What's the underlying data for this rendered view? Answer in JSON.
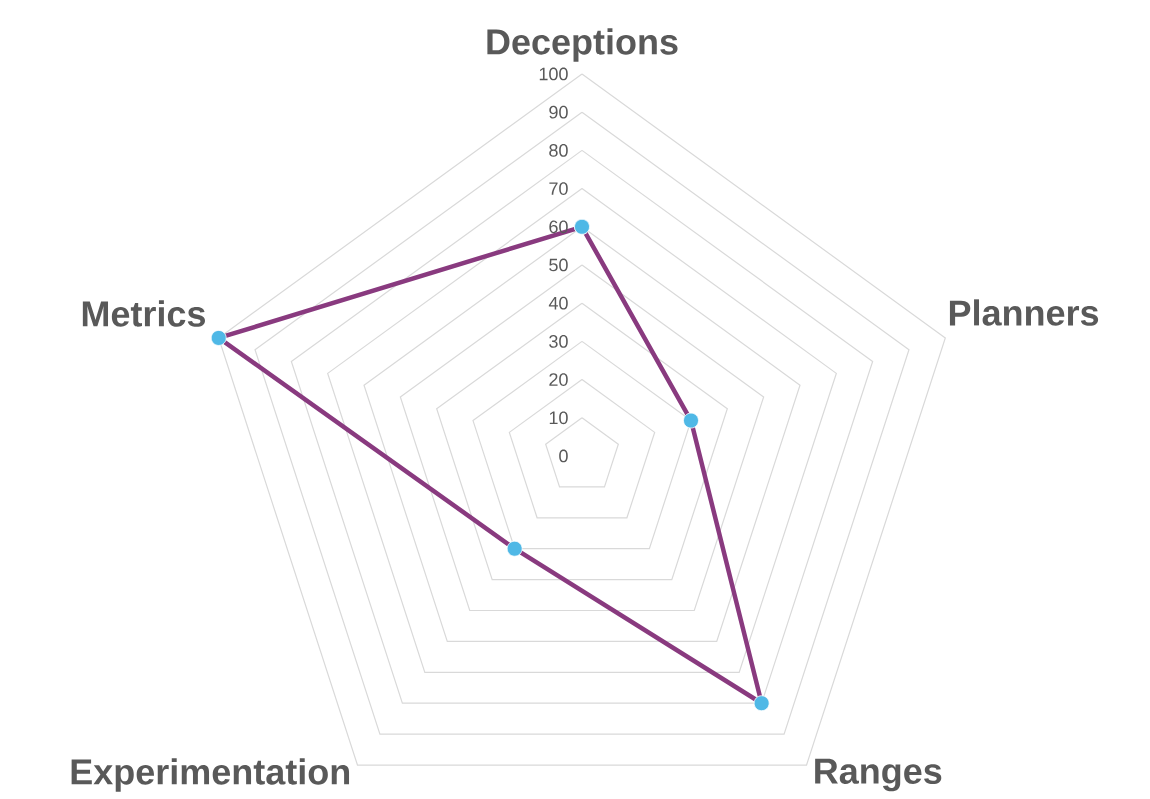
{
  "chart_data": {
    "type": "radar",
    "categories": [
      "Deceptions",
      "Planners",
      "Ranges",
      "Experimentation",
      "Metrics"
    ],
    "series": [
      {
        "color": "#893a7f",
        "values": [
          60,
          30,
          80,
          30,
          100
        ]
      }
    ],
    "ylim": [
      0,
      100
    ],
    "yticks": [
      0,
      10,
      20,
      30,
      40,
      50,
      60,
      70,
      80,
      90,
      100
    ],
    "grid": true,
    "marker": "circle"
  }
}
